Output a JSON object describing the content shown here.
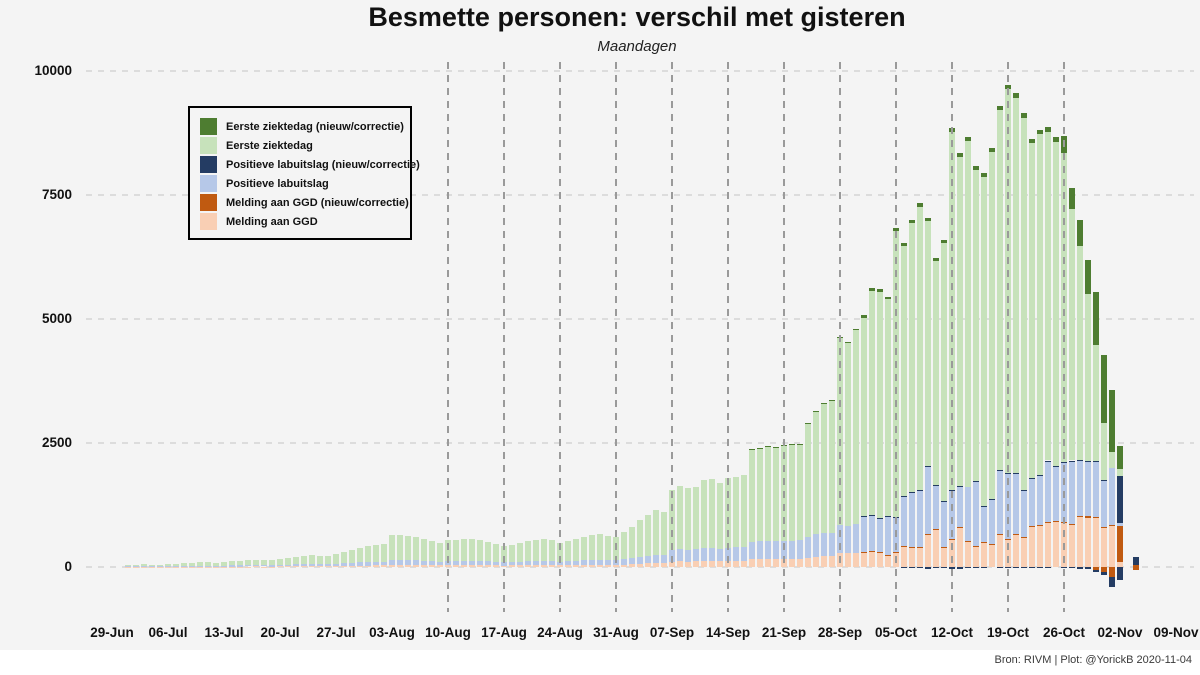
{
  "title": "Besmette personen: verschil met gisteren",
  "subtitle": "Maandagen",
  "caption": "Bron: RIVM | Plot: @YorickB  2020-11-04",
  "colors": {
    "background": "#f4f4f4",
    "caption_strip": "#ffffff",
    "hgrid": "#dcdcdc",
    "vgrid": "#9a9a9a",
    "text": "#111111"
  },
  "chart_data": {
    "type": "bar",
    "stacked": true,
    "title": "Besmette personen: verschil met gisteren",
    "subtitle": "Maandagen",
    "xlabel": "",
    "ylabel": "",
    "ylim": [
      -500,
      10000
    ],
    "y_ticks": [
      0,
      2500,
      5000,
      7500,
      10000
    ],
    "grid": "dashed",
    "legend_position": "top-left",
    "x_tick_labels": [
      "29-Jun",
      "06-Jul",
      "13-Jul",
      "20-Jul",
      "27-Jul",
      "03-Aug",
      "10-Aug",
      "17-Aug",
      "24-Aug",
      "31-Aug",
      "07-Sep",
      "14-Sep",
      "21-Sep",
      "28-Sep",
      "05-Oct",
      "12-Oct",
      "19-Oct",
      "26-Oct",
      "02-Nov",
      "09-Nov"
    ],
    "vline_ticks": [
      "10-Aug",
      "17-Aug",
      "24-Aug",
      "31-Aug",
      "07-Sep",
      "14-Sep",
      "21-Sep",
      "28-Sep",
      "05-Oct",
      "12-Oct",
      "19-Oct",
      "26-Oct"
    ],
    "series": [
      {
        "key": "ez_n",
        "label": "Eerste ziektedag (nieuw/correctie)",
        "color": "#4e7d31"
      },
      {
        "key": "ez",
        "label": "Eerste ziektedag",
        "color": "#c7e2bb"
      },
      {
        "key": "lab_n",
        "label": "Positieve labuitslag (nieuw/correctie)",
        "color": "#243c63"
      },
      {
        "key": "lab",
        "label": "Positieve labuitslag",
        "color": "#b6c8e8"
      },
      {
        "key": "ggd_n",
        "label": "Melding aan GGD (nieuw/correctie)",
        "color": "#c05a11"
      },
      {
        "key": "ggd",
        "label": "Melding aan GGD",
        "color": "#f9cfb4"
      }
    ],
    "row_format": [
      "date",
      "ggd",
      "ggd_n",
      "lab",
      "lab_n",
      "ez",
      "ez_n",
      "neg_ggd_n",
      "neg_lab_n"
    ],
    "first_day_offset_from_29jun": 2,
    "rows": [
      [
        "01-Jul",
        5,
        0,
        10,
        0,
        30,
        0,
        0,
        0
      ],
      [
        "02-Jul",
        5,
        0,
        10,
        0,
        35,
        0,
        0,
        0
      ],
      [
        "03-Jul",
        5,
        0,
        10,
        0,
        40,
        0,
        0,
        0
      ],
      [
        "04-Jul",
        5,
        0,
        10,
        0,
        35,
        0,
        0,
        0
      ],
      [
        "05-Jul",
        5,
        0,
        8,
        0,
        32,
        0,
        0,
        0
      ],
      [
        "06-Jul",
        5,
        0,
        12,
        0,
        43,
        0,
        0,
        0
      ],
      [
        "07-Jul",
        6,
        0,
        14,
        0,
        50,
        0,
        0,
        0
      ],
      [
        "08-Jul",
        6,
        0,
        15,
        0,
        59,
        0,
        0,
        0
      ],
      [
        "09-Jul",
        7,
        0,
        16,
        0,
        67,
        0,
        0,
        0
      ],
      [
        "10-Jul",
        8,
        0,
        18,
        0,
        74,
        0,
        0,
        0
      ],
      [
        "11-Jul",
        7,
        0,
        16,
        0,
        72,
        0,
        0,
        0
      ],
      [
        "12-Jul",
        6,
        0,
        15,
        0,
        69,
        0,
        0,
        0
      ],
      [
        "13-Jul",
        8,
        0,
        20,
        0,
        82,
        0,
        0,
        0
      ],
      [
        "14-Jul",
        9,
        0,
        22,
        0,
        89,
        0,
        0,
        0
      ],
      [
        "15-Jul",
        10,
        0,
        24,
        0,
        96,
        0,
        0,
        0
      ],
      [
        "16-Jul",
        10,
        0,
        26,
        0,
        104,
        0,
        0,
        0
      ],
      [
        "17-Jul",
        11,
        0,
        28,
        0,
        111,
        0,
        0,
        0
      ],
      [
        "18-Jul",
        10,
        0,
        26,
        0,
        109,
        0,
        0,
        0
      ],
      [
        "19-Jul",
        10,
        0,
        24,
        0,
        106,
        0,
        0,
        0
      ],
      [
        "20-Jul",
        12,
        0,
        28,
        0,
        120,
        0,
        0,
        0
      ],
      [
        "21-Jul",
        13,
        0,
        32,
        0,
        135,
        0,
        0,
        0
      ],
      [
        "22-Jul",
        15,
        0,
        36,
        0,
        149,
        0,
        0,
        0
      ],
      [
        "23-Jul",
        16,
        0,
        40,
        0,
        164,
        0,
        0,
        0
      ],
      [
        "24-Jul",
        18,
        0,
        44,
        0,
        178,
        0,
        0,
        0
      ],
      [
        "25-Jul",
        17,
        0,
        40,
        0,
        173,
        0,
        0,
        0
      ],
      [
        "26-Jul",
        16,
        0,
        38,
        0,
        166,
        0,
        0,
        0
      ],
      [
        "27-Jul",
        20,
        0,
        46,
        0,
        194,
        0,
        0,
        0
      ],
      [
        "28-Jul",
        22,
        0,
        52,
        0,
        226,
        0,
        0,
        0
      ],
      [
        "29-Jul",
        25,
        0,
        58,
        0,
        257,
        0,
        0,
        0
      ],
      [
        "30-Jul",
        28,
        0,
        64,
        0,
        288,
        0,
        0,
        0
      ],
      [
        "31-Jul",
        30,
        0,
        70,
        0,
        320,
        0,
        0,
        0
      ],
      [
        "01-Aug",
        32,
        0,
        74,
        0,
        344,
        0,
        0,
        0
      ],
      [
        "02-Aug",
        34,
        0,
        76,
        0,
        360,
        0,
        0,
        0
      ],
      [
        "03-Aug",
        45,
        0,
        100,
        0,
        505,
        0,
        0,
        0
      ],
      [
        "04-Aug",
        44,
        0,
        98,
        0,
        498,
        0,
        0,
        0
      ],
      [
        "05-Aug",
        43,
        0,
        95,
        0,
        482,
        0,
        0,
        0
      ],
      [
        "06-Aug",
        42,
        0,
        92,
        0,
        466,
        0,
        0,
        0
      ],
      [
        "07-Aug",
        39,
        0,
        86,
        0,
        435,
        0,
        0,
        0
      ],
      [
        "08-Aug",
        36,
        0,
        80,
        0,
        404,
        0,
        0,
        0
      ],
      [
        "09-Aug",
        34,
        0,
        76,
        0,
        380,
        0,
        0,
        0
      ],
      [
        "10-Aug",
        38,
        0,
        84,
        0,
        428,
        0,
        0,
        0
      ],
      [
        "11-Aug",
        37,
        0,
        82,
        0,
        421,
        0,
        0,
        0
      ],
      [
        "12-Aug",
        39,
        0,
        86,
        0,
        435,
        0,
        0,
        0
      ],
      [
        "13-Aug",
        40,
        0,
        88,
        0,
        442,
        0,
        0,
        0
      ],
      [
        "14-Aug",
        38,
        0,
        84,
        0,
        428,
        0,
        0,
        0
      ],
      [
        "15-Aug",
        35,
        0,
        78,
        0,
        387,
        0,
        0,
        0
      ],
      [
        "16-Aug",
        32,
        0,
        72,
        0,
        356,
        0,
        0,
        0
      ],
      [
        "17-Aug",
        30,
        0,
        66,
        0,
        334,
        0,
        0,
        0
      ],
      [
        "18-Aug",
        31,
        0,
        70,
        0,
        349,
        0,
        0,
        0
      ],
      [
        "19-Aug",
        33,
        0,
        74,
        0,
        373,
        0,
        0,
        0
      ],
      [
        "20-Aug",
        36,
        0,
        80,
        0,
        404,
        0,
        0,
        0
      ],
      [
        "21-Aug",
        37,
        0,
        82,
        0,
        421,
        0,
        0,
        0
      ],
      [
        "22-Aug",
        39,
        0,
        86,
        0,
        435,
        0,
        0,
        0
      ],
      [
        "23-Aug",
        37,
        0,
        84,
        0,
        419,
        0,
        0,
        0
      ],
      [
        "24-Aug",
        33,
        0,
        74,
        0,
        373,
        0,
        0,
        0
      ],
      [
        "25-Aug",
        36,
        0,
        80,
        0,
        404,
        0,
        0,
        0
      ],
      [
        "26-Aug",
        39,
        0,
        86,
        0,
        435,
        0,
        0,
        0
      ],
      [
        "27-Aug",
        42,
        0,
        92,
        0,
        466,
        0,
        0,
        0
      ],
      [
        "28-Aug",
        44,
        0,
        98,
        0,
        498,
        0,
        0,
        0
      ],
      [
        "29-Aug",
        46,
        0,
        100,
        0,
        514,
        0,
        0,
        0
      ],
      [
        "30-Aug",
        43,
        0,
        95,
        0,
        482,
        0,
        0,
        0
      ],
      [
        "31-Aug",
        42,
        0,
        92,
        0,
        466,
        0,
        0,
        0
      ],
      [
        "01-Sep",
        48,
        0,
        105,
        0,
        547,
        0,
        0,
        0
      ],
      [
        "02-Sep",
        55,
        0,
        120,
        0,
        625,
        0,
        0,
        0
      ],
      [
        "03-Sep",
        65,
        0,
        140,
        0,
        745,
        0,
        0,
        0
      ],
      [
        "04-Sep",
        72,
        0,
        155,
        0,
        823,
        0,
        0,
        0
      ],
      [
        "05-Sep",
        79,
        0,
        170,
        0,
        901,
        0,
        0,
        0
      ],
      [
        "06-Sep",
        75,
        0,
        160,
        0,
        865,
        0,
        0,
        0
      ],
      [
        "07-Sep",
        105,
        0,
        230,
        0,
        1215,
        0,
        0,
        0
      ],
      [
        "08-Sep",
        112,
        0,
        245,
        0,
        1283,
        0,
        0,
        0
      ],
      [
        "09-Sep",
        110,
        0,
        240,
        0,
        1250,
        0,
        0,
        0
      ],
      [
        "10-Sep",
        111,
        0,
        242,
        0,
        1267,
        0,
        0,
        0
      ],
      [
        "11-Sep",
        120,
        0,
        260,
        0,
        1374,
        0,
        0,
        0
      ],
      [
        "12-Sep",
        122,
        0,
        265,
        0,
        1393,
        0,
        0,
        0
      ],
      [
        "13-Sep",
        116,
        0,
        250,
        0,
        1334,
        0,
        0,
        0
      ],
      [
        "14-Sep",
        122,
        0,
        268,
        0,
        1400,
        0,
        0,
        0
      ],
      [
        "15-Sep",
        125,
        0,
        272,
        0,
        1423,
        0,
        0,
        0
      ],
      [
        "16-Sep",
        127,
        0,
        277,
        0,
        1446,
        0,
        0,
        0
      ],
      [
        "17-Sep",
        160,
        0,
        350,
        0,
        1850,
        20,
        0,
        0
      ],
      [
        "18-Sep",
        162,
        0,
        355,
        0,
        1863,
        20,
        0,
        0
      ],
      [
        "19-Sep",
        165,
        0,
        360,
        0,
        1895,
        20,
        0,
        0
      ],
      [
        "20-Sep",
        164,
        0,
        358,
        0,
        1878,
        20,
        0,
        0
      ],
      [
        "21-Sep",
        167,
        0,
        365,
        0,
        1908,
        20,
        0,
        0
      ],
      [
        "22-Sep",
        168,
        0,
        366,
        0,
        1916,
        20,
        0,
        0
      ],
      [
        "23-Sep",
        168,
        0,
        368,
        0,
        1924,
        20,
        0,
        0
      ],
      [
        "24-Sep",
        190,
        0,
        420,
        0,
        2270,
        20,
        0,
        0
      ],
      [
        "25-Sep",
        205,
        0,
        455,
        0,
        2470,
        20,
        0,
        0
      ],
      [
        "26-Sep",
        212,
        0,
        470,
        0,
        2598,
        20,
        0,
        0
      ],
      [
        "27-Sep",
        215,
        0,
        475,
        0,
        2655,
        25,
        0,
        0
      ],
      [
        "28-Sep",
        280,
        0,
        560,
        0,
        3770,
        30,
        0,
        0
      ],
      [
        "29-Sep",
        275,
        0,
        550,
        0,
        3685,
        30,
        0,
        0
      ],
      [
        "30-Sep",
        290,
        0,
        580,
        0,
        3900,
        30,
        0,
        0
      ],
      [
        "01-Oct",
        300,
        10,
        700,
        10,
        4000,
        60,
        0,
        0
      ],
      [
        "02-Oct",
        310,
        10,
        720,
        15,
        4510,
        60,
        0,
        0
      ],
      [
        "03-Oct",
        290,
        10,
        680,
        10,
        4560,
        50,
        0,
        0
      ],
      [
        "04-Oct",
        242,
        8,
        766,
        10,
        4374,
        40,
        0,
        0
      ],
      [
        "05-Oct",
        282,
        12,
        706,
        12,
        5758,
        60,
        0,
        0
      ],
      [
        "06-Oct",
        403,
        13,
        1008,
        10,
        5036,
        60,
        0,
        -20
      ],
      [
        "07-Oct",
        395,
        15,
        1097,
        8,
        5415,
        70,
        0,
        -30
      ],
      [
        "08-Oct",
        395,
        15,
        1135,
        10,
        5705,
        80,
        0,
        -30
      ],
      [
        "09-Oct",
        645,
        25,
        1371,
        4,
        4925,
        70,
        -10,
        -40
      ],
      [
        "10-Oct",
        746,
        26,
        867,
        7,
        4524,
        60,
        0,
        -30
      ],
      [
        "11-Oct",
        395,
        15,
        915,
        10,
        5205,
        60,
        0,
        -30
      ],
      [
        "12-Oct",
        544,
        24,
        968,
        8,
        7236,
        70,
        0,
        -40
      ],
      [
        "13-Oct",
        786,
        26,
        827,
        2,
        6634,
        70,
        -10,
        -40
      ],
      [
        "14-Oct",
        500,
        20,
        1100,
        0,
        6970,
        80,
        0,
        -30
      ],
      [
        "15-Oct",
        403,
        13,
        1311,
        16,
        6267,
        70,
        0,
        -30
      ],
      [
        "16-Oct",
        484,
        14,
        726,
        10,
        6626,
        80,
        0,
        -20
      ],
      [
        "17-Oct",
        450,
        10,
        900,
        10,
        7000,
        80,
        0,
        0
      ],
      [
        "18-Oct",
        645,
        25,
        1270,
        15,
        7255,
        90,
        0,
        -20
      ],
      [
        "19-Oct",
        544,
        24,
        1311,
        15,
        7736,
        90,
        0,
        -20
      ],
      [
        "20-Oct",
        645,
        25,
        1210,
        15,
        7565,
        90,
        0,
        -30
      ],
      [
        "21-Oct",
        580,
        20,
        950,
        10,
        7500,
        90,
        0,
        -30
      ],
      [
        "22-Oct",
        806,
        26,
        948,
        6,
        6754,
        90,
        0,
        -20
      ],
      [
        "23-Oct",
        826,
        26,
        989,
        5,
        6874,
        90,
        0,
        -30
      ],
      [
        "24-Oct",
        887,
        27,
        1230,
        3,
        6633,
        90,
        0,
        -20
      ],
      [
        "25-Oct",
        900,
        20,
        1100,
        10,
        6540,
        100,
        0,
        0
      ],
      [
        "26-Oct",
        887,
        27,
        1190,
        3,
        6233,
        350,
        0,
        -30
      ],
      [
        "27-Oct",
        847,
        27,
        1270,
        3,
        5073,
        420,
        0,
        -30
      ],
      [
        "28-Oct",
        1008,
        28,
        1110,
        2,
        4332,
        510,
        0,
        -40
      ],
      [
        "29-Oct",
        990,
        30,
        1110,
        10,
        3370,
        680,
        0,
        -40
      ],
      [
        "30-Oct",
        988,
        28,
        1108,
        14,
        2342,
        1060,
        -60,
        -50
      ],
      [
        "31-Oct",
        790,
        16,
        930,
        14,
        1150,
        1380,
        -100,
        -60
      ],
      [
        "01-Nov",
        826,
        20,
        1150,
        0,
        324,
        1250,
        -200,
        -200
      ],
      [
        "02-Nov",
        100,
        725,
        60,
        950,
        140,
        460,
        0,
        -260
      ],
      [
        "03-Nov",
        0,
        0,
        0,
        0,
        0,
        0,
        0,
        0
      ],
      [
        "04-Nov",
        0,
        40,
        0,
        160,
        0,
        0,
        -60,
        0
      ]
    ]
  }
}
